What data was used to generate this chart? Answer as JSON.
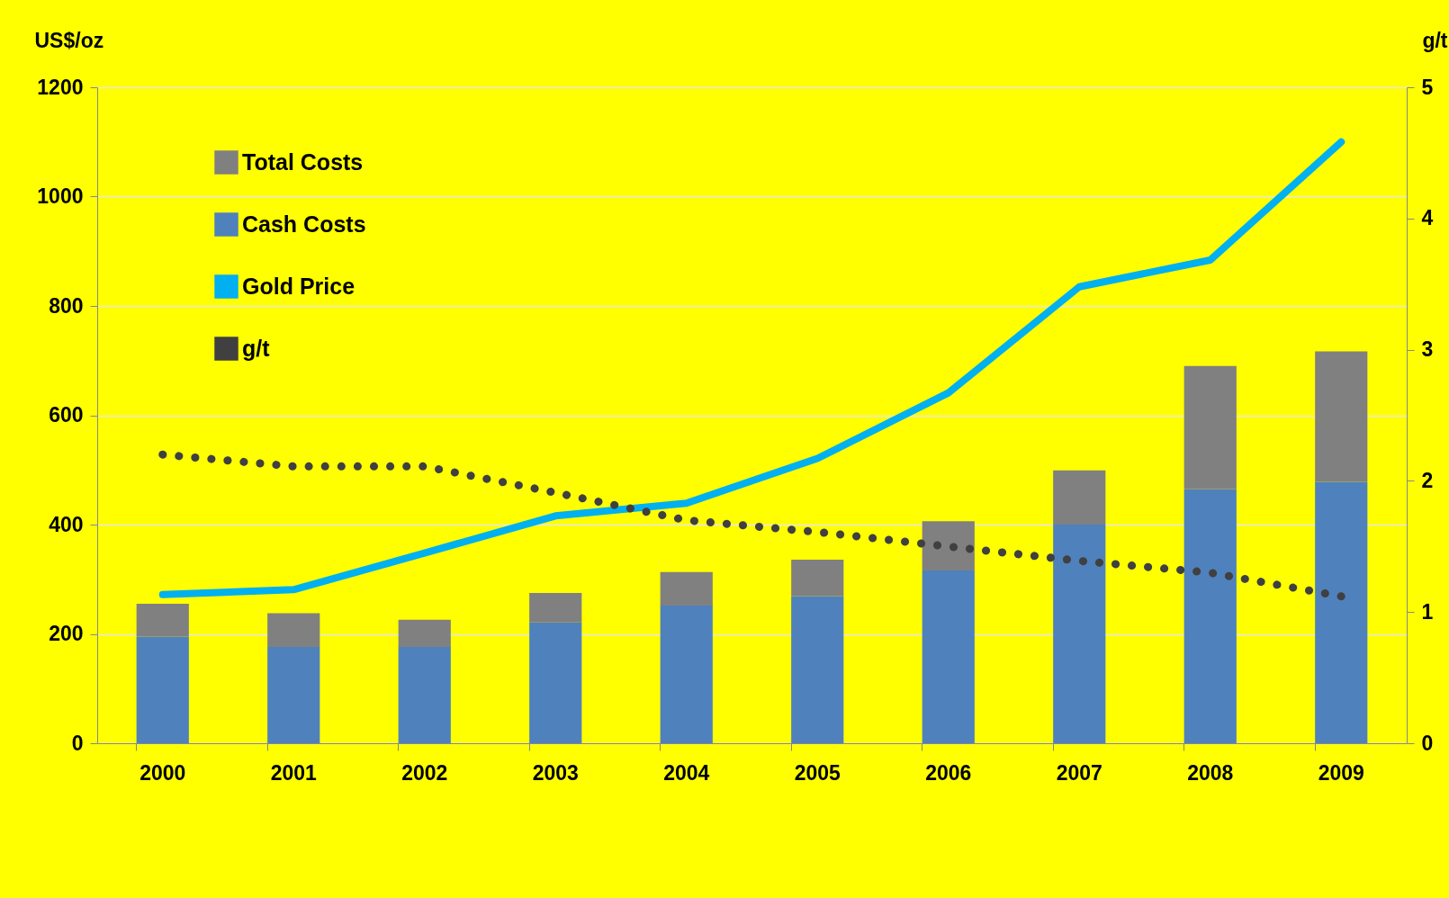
{
  "chart_data": {
    "type": "bar",
    "stacked": true,
    "ylabel": "US$/oz",
    "y2label": "g/t",
    "categories": [
      "2000",
      "2001",
      "2002",
      "2003",
      "2004",
      "2005",
      "2006",
      "2007",
      "2008",
      "2009"
    ],
    "series": [
      {
        "name": "Cash Costs",
        "color": "#4f81bd",
        "values": [
          195,
          176,
          176,
          221,
          252,
          269,
          316,
          400,
          465,
          478
        ]
      },
      {
        "name": "Total Costs",
        "color": "#808080",
        "values": [
          60,
          62,
          50,
          54,
          61,
          67,
          90,
          99,
          225,
          239
        ]
      },
      {
        "name": "Gold Price",
        "type": "line",
        "color": "#00b0f0",
        "line_style": "solid",
        "values": [
          272,
          281,
          348,
          416,
          439,
          521,
          641,
          835,
          884,
          1100
        ]
      },
      {
        "name": "g/t",
        "type": "line",
        "axis": "y2",
        "color": "#404040",
        "line_style": "dotted",
        "values": [
          2.2,
          2.11,
          2.11,
          1.91,
          1.7,
          1.61,
          1.5,
          1.39,
          1.3,
          1.12
        ]
      }
    ],
    "ylim": [
      0,
      1200
    ],
    "yticks": [
      0,
      200,
      400,
      600,
      800,
      1000,
      1200
    ],
    "y2lim": [
      0,
      5
    ],
    "y2ticks": [
      0,
      1,
      2,
      3,
      4,
      5
    ],
    "grid": "y",
    "legend": "top left"
  }
}
